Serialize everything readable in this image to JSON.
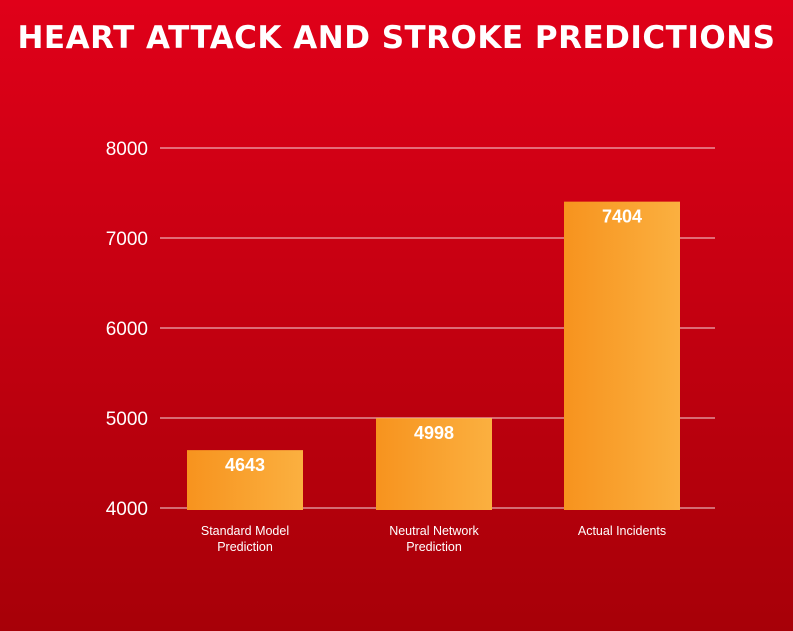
{
  "chart_data": {
    "type": "bar",
    "title": "HEART ATTACK AND STROKE PREDICTIONS",
    "categories": [
      [
        "Standard Model",
        "Prediction"
      ],
      [
        "Neutral Network",
        "Prediction"
      ],
      [
        "Actual Incidents"
      ]
    ],
    "values": [
      4643,
      4998,
      7404
    ],
    "data_labels": [
      "4643",
      "4998",
      "7404"
    ],
    "ylim": [
      4000,
      8000
    ],
    "yticks": [
      4000,
      5000,
      6000,
      7000,
      8000
    ],
    "ytick_labels": [
      "4000",
      "5000",
      "6000",
      "7000",
      "8000"
    ],
    "grid": true,
    "xlabel": "",
    "ylabel": ""
  },
  "colors": {
    "background_top": "#e00019",
    "background_bottom": "#a70008",
    "bar_left": "#f7931e",
    "bar_right": "#fbb040",
    "text": "#ffffff"
  }
}
